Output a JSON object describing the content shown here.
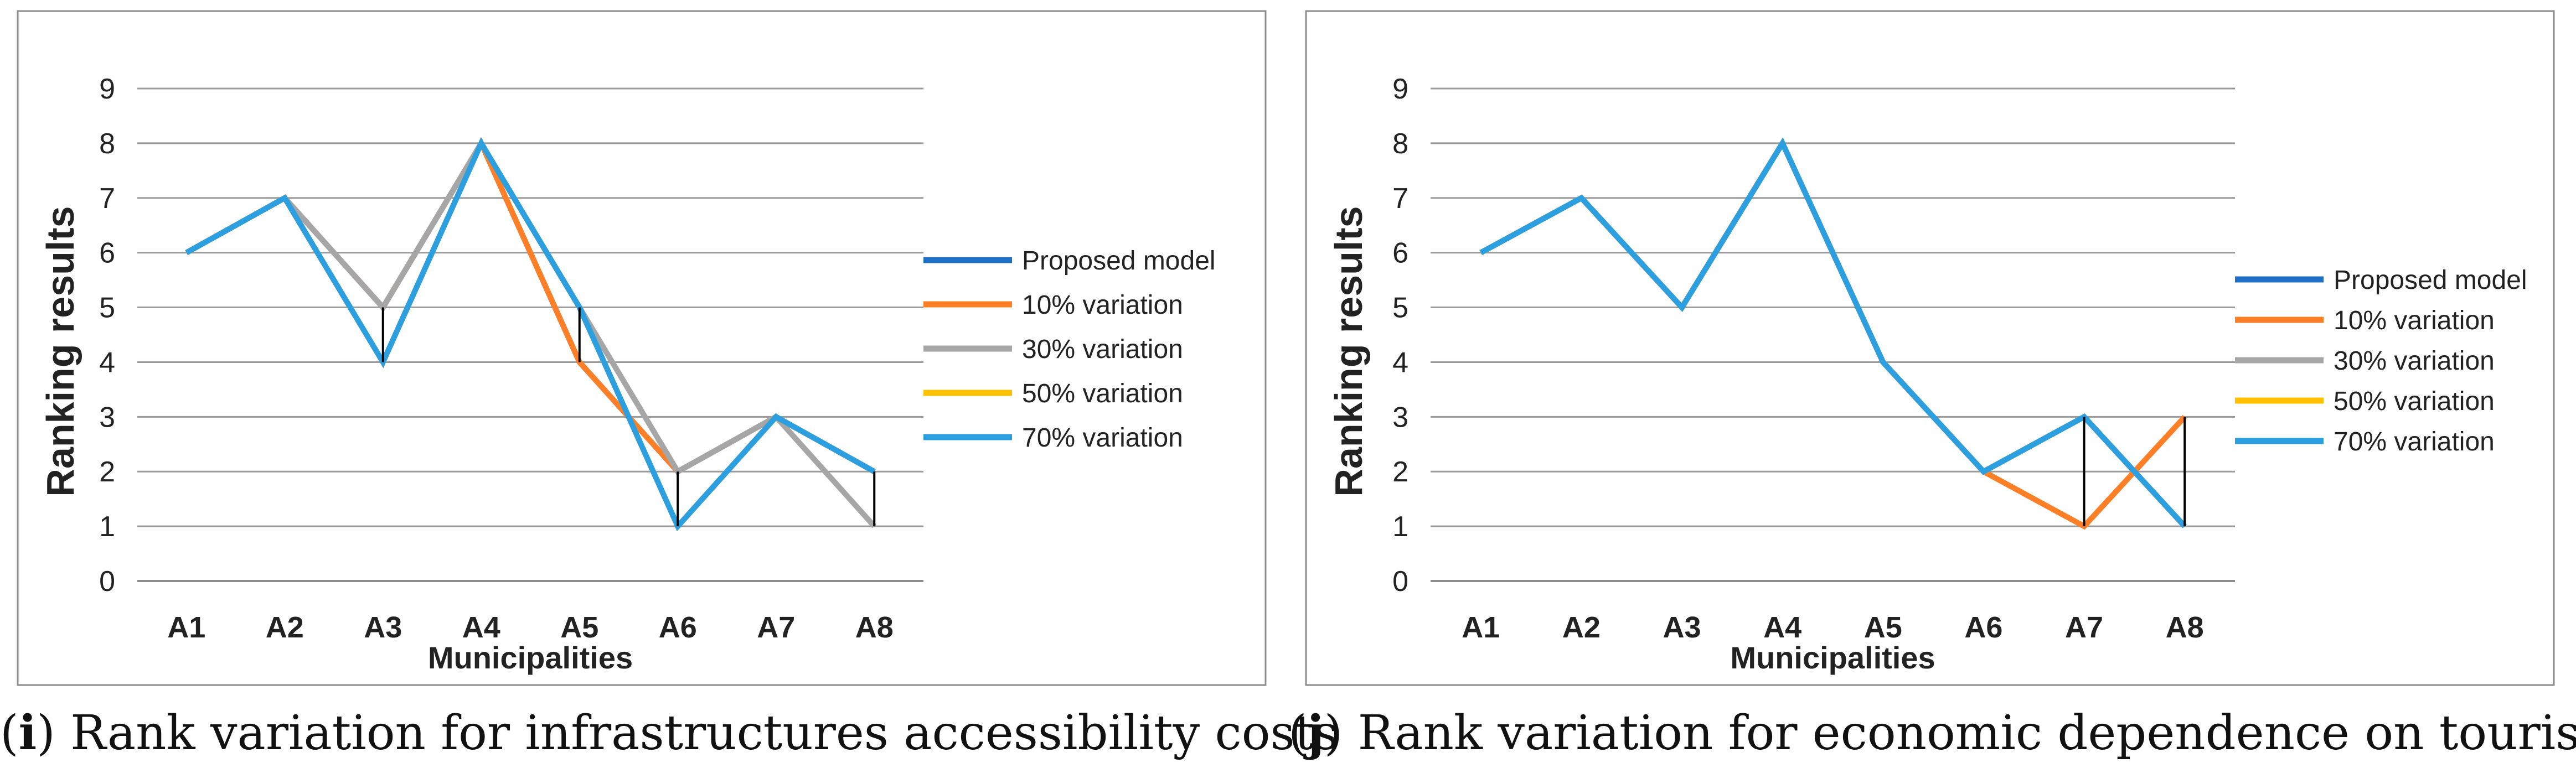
{
  "figures": [
    {
      "caption": {
        "letter": "i",
        "text": " Rank variation for infrastructures accessibility costs"
      }
    },
    {
      "caption": {
        "letter": "j",
        "text": " Rank variation for economic dependence on tourism"
      }
    }
  ],
  "chart_data": [
    {
      "type": "line",
      "title": "",
      "xlabel": "Municipalities",
      "ylabel": "Ranking results",
      "ylim": [
        0,
        9
      ],
      "yticks": [
        0,
        1,
        2,
        3,
        4,
        5,
        6,
        7,
        8,
        9
      ],
      "grid": true,
      "legend_position": "right",
      "categories": [
        "A1",
        "A2",
        "A3",
        "A4",
        "A5",
        "A6",
        "A7",
        "A8"
      ],
      "series": [
        {
          "name": "Proposed model",
          "color": "#1f6fc5",
          "values": [
            6,
            7,
            5,
            8,
            4,
            2,
            3,
            2
          ]
        },
        {
          "name": "10% variation",
          "color": "#ff7f27",
          "values": [
            6,
            7,
            5,
            8,
            4,
            2,
            3,
            2
          ]
        },
        {
          "name": "30% variation",
          "color": "#a6a6a6",
          "values": [
            6,
            7,
            5,
            8,
            5,
            2,
            3,
            1
          ]
        },
        {
          "name": "50% variation",
          "color": "#ffc000",
          "values": [
            6,
            7,
            4,
            8,
            5,
            1,
            3,
            2
          ]
        },
        {
          "name": "70% variation",
          "color": "#2b9fe0",
          "values": [
            6,
            7,
            4,
            8,
            5,
            1,
            3,
            2
          ]
        }
      ],
      "annotations": [
        {
          "category": "A3",
          "from": 4,
          "to": 5
        },
        {
          "category": "A5",
          "from": 4,
          "to": 5
        },
        {
          "category": "A6",
          "from": 1,
          "to": 2
        },
        {
          "category": "A8",
          "from": 1,
          "to": 2
        }
      ]
    },
    {
      "type": "line",
      "title": "",
      "xlabel": "Municipalities",
      "ylabel": "Ranking results",
      "ylim": [
        0,
        9
      ],
      "yticks": [
        0,
        1,
        2,
        3,
        4,
        5,
        6,
        7,
        8,
        9
      ],
      "grid": true,
      "legend_position": "right",
      "categories": [
        "A1",
        "A2",
        "A3",
        "A4",
        "A5",
        "A6",
        "A7",
        "A8"
      ],
      "series": [
        {
          "name": "Proposed model",
          "color": "#1f6fc5",
          "values": [
            6,
            7,
            5,
            8,
            4,
            2,
            3,
            1
          ]
        },
        {
          "name": "10% variation",
          "color": "#ff7f27",
          "values": [
            6,
            7,
            5,
            8,
            4,
            2,
            1,
            3
          ]
        },
        {
          "name": "30% variation",
          "color": "#a6a6a6",
          "values": [
            6,
            7,
            5,
            8,
            4,
            2,
            3,
            1
          ]
        },
        {
          "name": "50% variation",
          "color": "#ffc000",
          "values": [
            6,
            7,
            5,
            8,
            4,
            2,
            3,
            1
          ]
        },
        {
          "name": "70% variation",
          "color": "#2b9fe0",
          "values": [
            6,
            7,
            5,
            8,
            4,
            2,
            3,
            1
          ]
        }
      ],
      "annotations": [
        {
          "category": "A7",
          "from": 1,
          "to": 3
        },
        {
          "category": "A8",
          "from": 1,
          "to": 3
        }
      ]
    }
  ]
}
